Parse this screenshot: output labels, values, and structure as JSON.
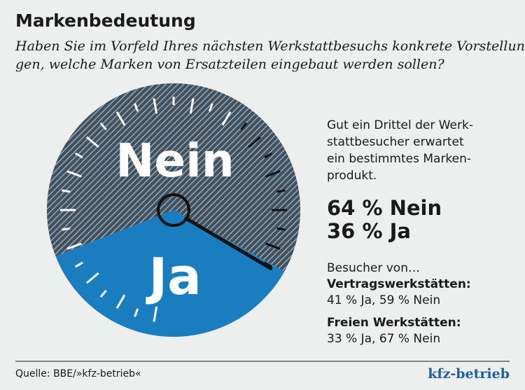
{
  "chart_data": {
    "type": "pie",
    "title": "Markenbedeutung",
    "subtitle": [
      "Haben Sie im Vorfeld Ihres nächsten Werkstattbesuchs konkrete Vorstellun-",
      "gen, welche Marken von Ersatzteilen eingebaut werden sollen?"
    ],
    "categories": [
      "Nein",
      "Ja"
    ],
    "values": [
      64,
      36
    ],
    "value_labels": [
      "64 % Nein",
      "36 % Ja"
    ],
    "colors": [
      "#3f5261",
      "#1a7dbf"
    ],
    "description": [
      "Gut ein Drittel der Werk-",
      "stattbesucher erwartet",
      "ein bestimmtes Marken-",
      "produkt."
    ],
    "details_heading": "Besucher von…",
    "details": [
      {
        "label": "Vertragswerkstätten:",
        "text": "41 % Ja, 59 % Nein"
      },
      {
        "label": "Freien Werkstätten:",
        "text": "33 % Ja, 67 % Nein"
      }
    ],
    "source": "Quelle: BBE/»kfz-betrieb«",
    "brand": "kfz-betrieb"
  }
}
